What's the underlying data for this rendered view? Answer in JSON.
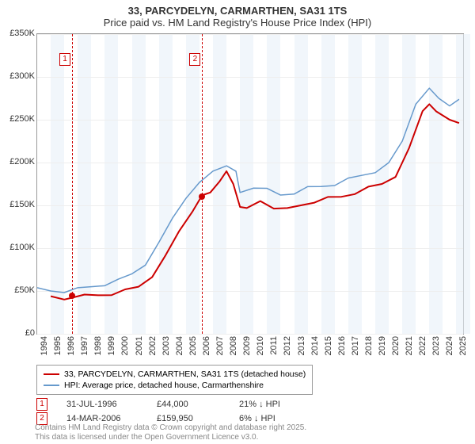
{
  "title": {
    "line1": "33, PARCYDELYN, CARMARTHEN, SA31 1TS",
    "line2": "Price paid vs. HM Land Registry's House Price Index (HPI)",
    "fontsize": 13
  },
  "chart": {
    "type": "line",
    "background_color": "#ffffff",
    "grid_color": "#eeeeee",
    "border_color": "#999999",
    "band_color": "#e8f0f8",
    "ylim": [
      0,
      350000
    ],
    "ytick_step": 50000,
    "yticks": [
      "£0",
      "£50K",
      "£100K",
      "£150K",
      "£200K",
      "£250K",
      "£300K",
      "£350K"
    ],
    "xlim": [
      1994,
      2025.5
    ],
    "xticks": [
      1994,
      1995,
      1996,
      1997,
      1998,
      1999,
      2000,
      2001,
      2002,
      2003,
      2004,
      2005,
      2006,
      2007,
      2008,
      2009,
      2010,
      2011,
      2012,
      2013,
      2014,
      2015,
      2016,
      2017,
      2018,
      2019,
      2020,
      2021,
      2022,
      2023,
      2024,
      2025
    ],
    "series": [
      {
        "name": "33, PARCYDELYN, CARMARTHEN, SA31 1TS (detached house)",
        "color": "#cc0000",
        "width": 2,
        "points": [
          [
            1995.0,
            42000
          ],
          [
            1996.0,
            40000
          ],
          [
            1996.58,
            44000
          ],
          [
            1997.5,
            44000
          ],
          [
            1998.5,
            45000
          ],
          [
            1999.5,
            47000
          ],
          [
            2000.5,
            50000
          ],
          [
            2001.5,
            55000
          ],
          [
            2002.5,
            68000
          ],
          [
            2003.5,
            90000
          ],
          [
            2004.5,
            120000
          ],
          [
            2005.5,
            145000
          ],
          [
            2006.2,
            159950
          ],
          [
            2006.8,
            165000
          ],
          [
            2007.5,
            180000
          ],
          [
            2008.0,
            188000
          ],
          [
            2008.5,
            175000
          ],
          [
            2009.0,
            150000
          ],
          [
            2009.5,
            145000
          ],
          [
            2010.5,
            155000
          ],
          [
            2011.5,
            148000
          ],
          [
            2012.5,
            145000
          ],
          [
            2013.5,
            150000
          ],
          [
            2014.5,
            155000
          ],
          [
            2015.5,
            158000
          ],
          [
            2016.5,
            160000
          ],
          [
            2017.5,
            165000
          ],
          [
            2018.5,
            170000
          ],
          [
            2019.5,
            175000
          ],
          [
            2020.5,
            185000
          ],
          [
            2021.5,
            215000
          ],
          [
            2022.5,
            260000
          ],
          [
            2023.0,
            270000
          ],
          [
            2023.5,
            258000
          ],
          [
            2024.5,
            250000
          ],
          [
            2025.2,
            248000
          ]
        ]
      },
      {
        "name": "HPI: Average price, detached house, Carmarthenshire",
        "color": "#6699cc",
        "width": 1.5,
        "points": [
          [
            1994.0,
            52000
          ],
          [
            1995.0,
            50000
          ],
          [
            1996.0,
            50000
          ],
          [
            1997.0,
            52000
          ],
          [
            1998.0,
            55000
          ],
          [
            1999.0,
            58000
          ],
          [
            2000.0,
            62000
          ],
          [
            2001.0,
            70000
          ],
          [
            2002.0,
            82000
          ],
          [
            2003.0,
            105000
          ],
          [
            2004.0,
            135000
          ],
          [
            2005.0,
            160000
          ],
          [
            2006.0,
            175000
          ],
          [
            2007.0,
            190000
          ],
          [
            2008.0,
            198000
          ],
          [
            2008.7,
            188000
          ],
          [
            2009.0,
            165000
          ],
          [
            2010.0,
            172000
          ],
          [
            2011.0,
            168000
          ],
          [
            2012.0,
            162000
          ],
          [
            2013.0,
            165000
          ],
          [
            2014.0,
            170000
          ],
          [
            2015.0,
            172000
          ],
          [
            2016.0,
            175000
          ],
          [
            2017.0,
            180000
          ],
          [
            2018.0,
            185000
          ],
          [
            2019.0,
            190000
          ],
          [
            2020.0,
            198000
          ],
          [
            2021.0,
            225000
          ],
          [
            2022.0,
            270000
          ],
          [
            2023.0,
            285000
          ],
          [
            2023.7,
            275000
          ],
          [
            2024.5,
            268000
          ],
          [
            2025.2,
            272000
          ]
        ]
      }
    ],
    "markers": [
      {
        "num": "1",
        "x": 1996.58,
        "y": 44000,
        "date": "31-JUL-1996",
        "price": "£44,000",
        "diff": "21% ↓ HPI"
      },
      {
        "num": "2",
        "x": 2006.2,
        "y": 159950,
        "date": "14-MAR-2006",
        "price": "£159,950",
        "diff": "6% ↓ HPI"
      }
    ]
  },
  "legend": {
    "item1": "33, PARCYDELYN, CARMARTHEN, SA31 1TS (detached house)",
    "item2": "HPI: Average price, detached house, Carmarthenshire"
  },
  "footer": {
    "line1": "Contains HM Land Registry data © Crown copyright and database right 2025.",
    "line2": "This data is licensed under the Open Government Licence v3.0."
  }
}
